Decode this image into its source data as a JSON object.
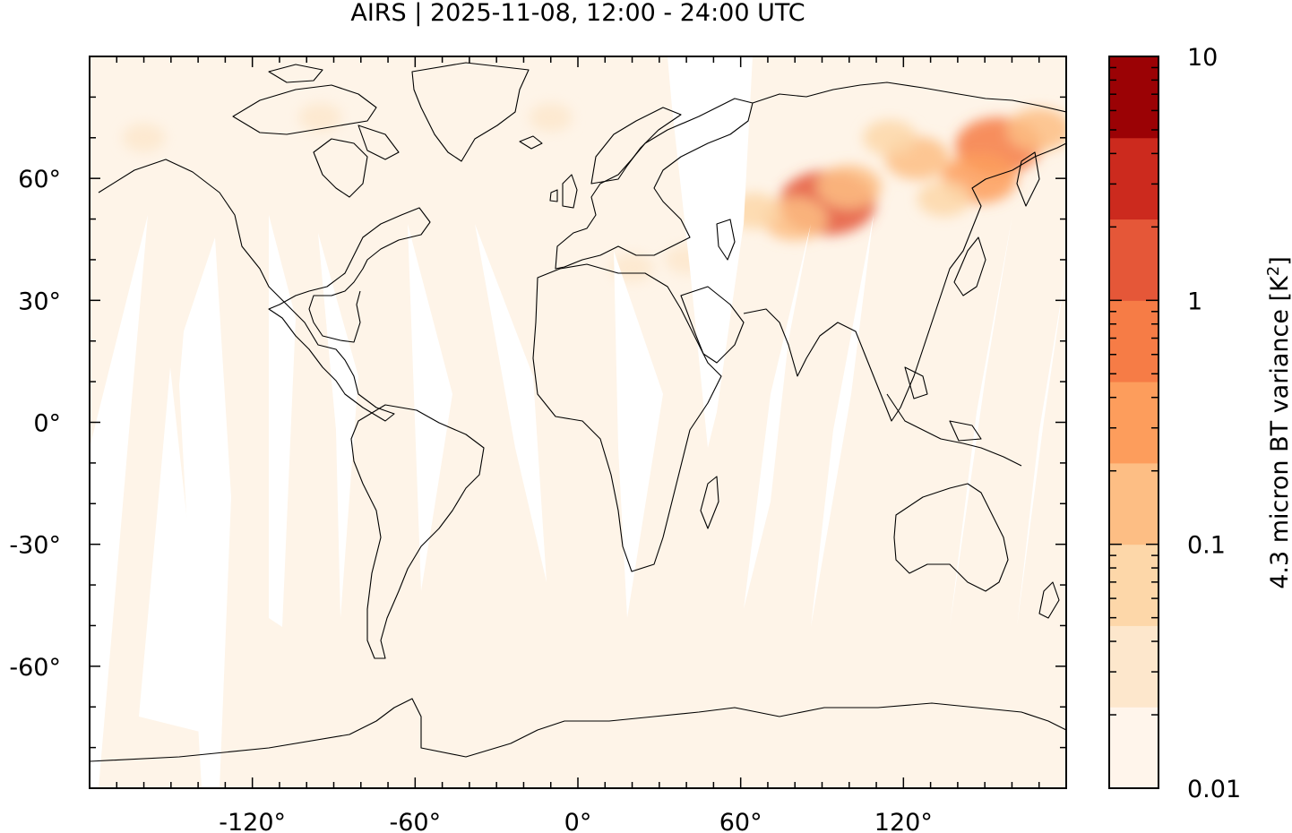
{
  "title": "AIRS | 2025-11-08, 12:00 - 24:00 UTC",
  "chart_data": {
    "type": "heatmap",
    "projection": "equirectangular",
    "xlim": [
      -180,
      180
    ],
    "ylim": [
      -90,
      90
    ],
    "xticks": [
      -120,
      -60,
      0,
      60,
      120
    ],
    "yticks": [
      60,
      30,
      0,
      -30,
      -60
    ],
    "xtick_labels": [
      "-120°",
      "-60°",
      "0°",
      "60°",
      "120°"
    ],
    "ytick_labels": [
      "60°",
      "30°",
      "0°",
      "-30°",
      "-60°"
    ],
    "colorbar": {
      "label": "4.3 micron BT variance [K",
      "label_sup": "2",
      "label_end": "]",
      "scale": "log",
      "range": [
        0.01,
        10
      ],
      "tick_values": [
        10,
        1,
        0.1,
        0.01
      ],
      "tick_labels": [
        "10",
        "1",
        "0.1",
        "0.01"
      ],
      "levels": [
        {
          "color": "#fff5eb"
        },
        {
          "color": "#fde7cc"
        },
        {
          "color": "#fdd7a9"
        },
        {
          "color": "#fdbe84"
        },
        {
          "color": "#fd9d5c"
        },
        {
          "color": "#f67c46"
        },
        {
          "color": "#e55738"
        },
        {
          "color": "#cc2a1e"
        },
        {
          "color": "#9b0205"
        }
      ]
    },
    "background_color": "#fef4e8",
    "hotspots": [
      {
        "lon": 92,
        "lat": 54,
        "level": 6
      },
      {
        "lon": 155,
        "lat": 68,
        "level": 5
      },
      {
        "lon": 148,
        "lat": 60,
        "level": 4
      },
      {
        "lon": 125,
        "lat": 65,
        "level": 3
      },
      {
        "lon": 100,
        "lat": 58,
        "level": 3
      },
      {
        "lon": 80,
        "lat": 50,
        "level": 3
      },
      {
        "lon": 65,
        "lat": 52,
        "level": 2
      },
      {
        "lon": 115,
        "lat": 70,
        "level": 2
      },
      {
        "lon": 170,
        "lat": 72,
        "level": 3
      },
      {
        "lon": 135,
        "lat": 55,
        "level": 2
      },
      {
        "lon": 20,
        "lat": 38,
        "level": 1
      },
      {
        "lon": -95,
        "lat": 75,
        "level": 1
      },
      {
        "lon": -160,
        "lat": 70,
        "level": 1
      },
      {
        "lon": -10,
        "lat": 75,
        "level": 1
      },
      {
        "lon": 40,
        "lat": 40,
        "level": 1
      }
    ],
    "gaps_description_none": "",
    "coastlines": true
  }
}
